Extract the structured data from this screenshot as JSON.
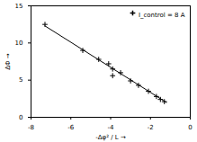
{
  "chart_data": {
    "type": "scatter",
    "x_label": "-Δφ² / L",
    "y_label": "ΔΦ",
    "xlim": [
      -8,
      0
    ],
    "ylim": [
      0,
      15
    ],
    "xticks": [
      -8,
      -6,
      -4,
      -2,
      0
    ],
    "yticks": [
      0,
      5,
      10,
      15
    ],
    "legend": "upper right",
    "series": [
      {
        "name": "I_control = 8 A",
        "type": "scatter",
        "marker": "plus",
        "color": "#000000",
        "x": [
          -7.3,
          -5.4,
          -4.6,
          -4.1,
          -3.9,
          -3.9,
          -3.5,
          -3.0,
          -2.6,
          -2.1,
          -1.7,
          -1.5,
          -1.3
        ],
        "values": [
          12.5,
          9.0,
          7.8,
          7.2,
          6.5,
          5.6,
          6.0,
          4.9,
          4.3,
          3.5,
          2.8,
          2.4,
          2.1
        ]
      },
      {
        "type": "line",
        "line_style": "solid",
        "color": "#000000",
        "x": [
          -7.3,
          -1.2
        ],
        "values": [
          12.3,
          2.0
        ]
      }
    ]
  }
}
